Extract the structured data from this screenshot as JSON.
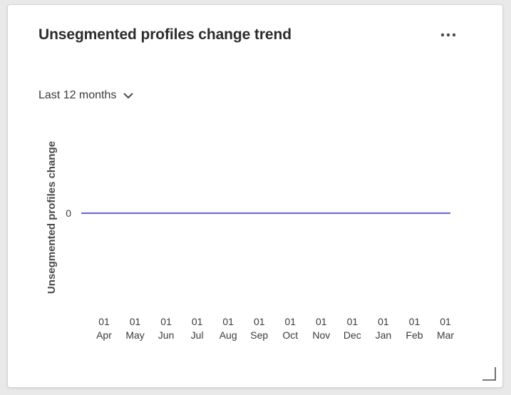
{
  "card": {
    "title": "Unsegmented profiles change trend",
    "more_icon": "more-horizontal-icon",
    "resize_icon": "resize-corner-icon"
  },
  "range_picker": {
    "selected": "Last 12 months",
    "icon": "chevron-down-icon"
  },
  "chart_data": {
    "type": "line",
    "title": "",
    "ylabel": "Unsegmented profiles change",
    "xlabel": "",
    "grid": false,
    "legend": "none",
    "y_ticks": [
      "0"
    ],
    "categories": [
      {
        "day": "01",
        "month": "Apr"
      },
      {
        "day": "01",
        "month": "May"
      },
      {
        "day": "01",
        "month": "Jun"
      },
      {
        "day": "01",
        "month": "Jul"
      },
      {
        "day": "01",
        "month": "Aug"
      },
      {
        "day": "01",
        "month": "Sep"
      },
      {
        "day": "01",
        "month": "Oct"
      },
      {
        "day": "01",
        "month": "Nov"
      },
      {
        "day": "01",
        "month": "Dec"
      },
      {
        "day": "01",
        "month": "Jan"
      },
      {
        "day": "01",
        "month": "Feb"
      },
      {
        "day": "01",
        "month": "Mar"
      }
    ],
    "series": [
      {
        "values": [
          0,
          0,
          0,
          0,
          0,
          0,
          0,
          0,
          0,
          0,
          0,
          0
        ],
        "color": "#6a6ee0"
      }
    ]
  }
}
